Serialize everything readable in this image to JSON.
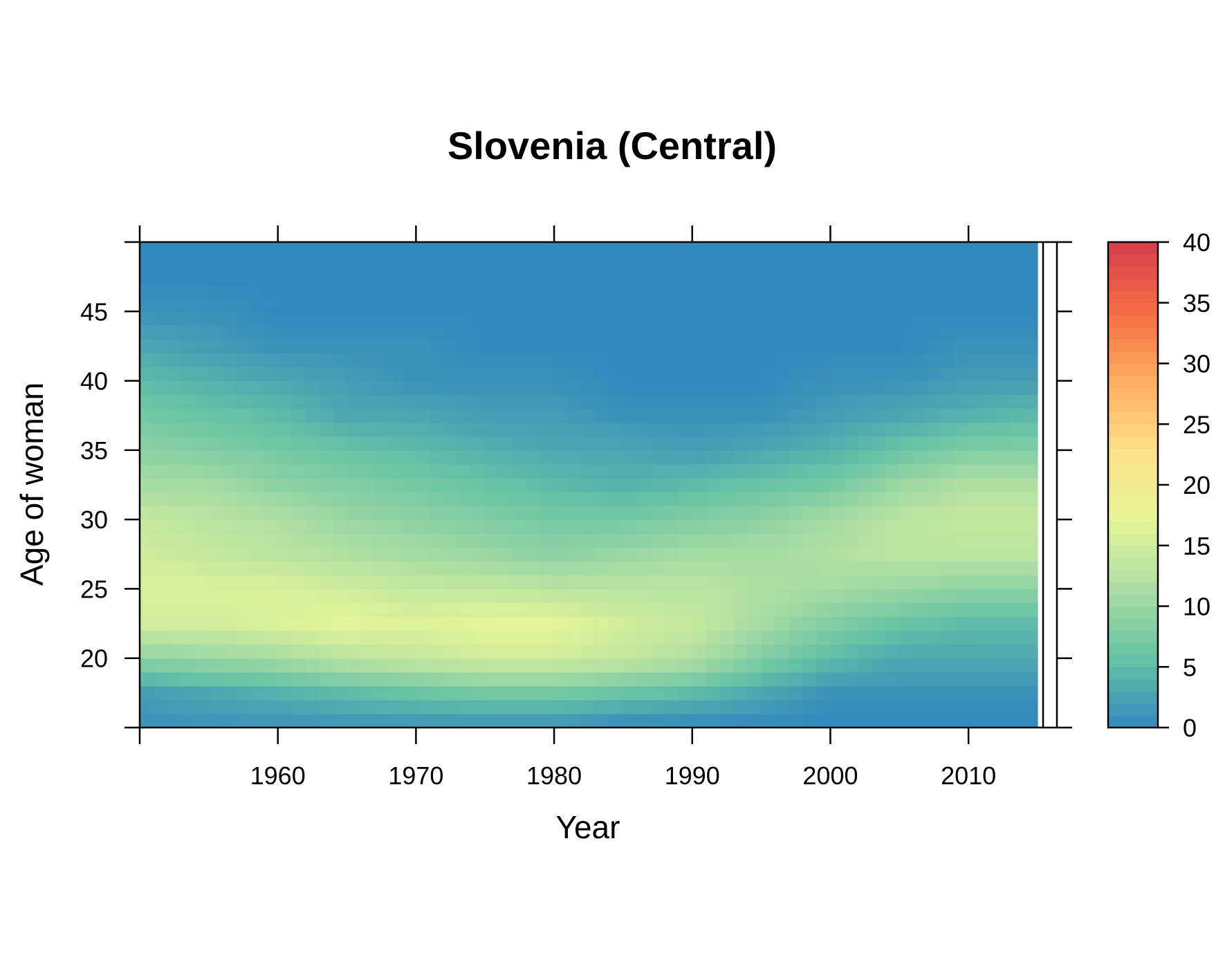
{
  "chart_data": {
    "type": "heatmap",
    "title": "Slovenia (Central)",
    "xlabel": "Year",
    "ylabel": "Age of woman",
    "x_range": [
      1950,
      2015
    ],
    "y_range": [
      15,
      50
    ],
    "x_ticks": [
      1960,
      1970,
      1980,
      1990,
      2000,
      2010
    ],
    "y_ticks": [
      20,
      25,
      30,
      35,
      40,
      45
    ],
    "colorbar": {
      "range": [
        0,
        40
      ],
      "ticks": [
        0,
        5,
        10,
        15,
        20,
        25,
        30,
        35,
        40
      ],
      "colors": [
        "#3288bd",
        "#66c2a5",
        "#abdda4",
        "#e6f598",
        "#fee08b",
        "#fdae61",
        "#f46d43",
        "#d53e4f"
      ]
    },
    "rate_grid": {
      "years": [
        1950,
        1955,
        1960,
        1965,
        1970,
        1975,
        1980,
        1985,
        1990,
        1995,
        2000,
        2005,
        2010,
        2015
      ],
      "ages": [
        15,
        17.5,
        20,
        22.5,
        25,
        27.5,
        30,
        32.5,
        35,
        37.5,
        40,
        42.5,
        45,
        47.5,
        50
      ],
      "values": [
        [
          1,
          2,
          9,
          15,
          16,
          15,
          14,
          11,
          9,
          7,
          5,
          3,
          1,
          0,
          0
        ],
        [
          1,
          3,
          10,
          15,
          16,
          14,
          13,
          11,
          8,
          6,
          4,
          2,
          1,
          0,
          0
        ],
        [
          1,
          4,
          11,
          16,
          16,
          13,
          12,
          9,
          7,
          5,
          3,
          1,
          0,
          0,
          0
        ],
        [
          1,
          5,
          13,
          17,
          15,
          12,
          10,
          8,
          6,
          3,
          2,
          1,
          0,
          0,
          0
        ],
        [
          1,
          6,
          14,
          16,
          14,
          11,
          9,
          7,
          5,
          3,
          1,
          1,
          0,
          0,
          0
        ],
        [
          1,
          7,
          15,
          17,
          14,
          10,
          8,
          6,
          4,
          2,
          1,
          0,
          0,
          0,
          0
        ],
        [
          1,
          7,
          15,
          17,
          13,
          9,
          7,
          5,
          3,
          2,
          1,
          0,
          0,
          0,
          0
        ],
        [
          0,
          6,
          14,
          15,
          13,
          10,
          7,
          4,
          3,
          1,
          0,
          0,
          0,
          0,
          0
        ],
        [
          0,
          5,
          12,
          14,
          13,
          11,
          8,
          5,
          2,
          1,
          0,
          0,
          0,
          0,
          0
        ],
        [
          0,
          3,
          8,
          11,
          12,
          11,
          9,
          6,
          3,
          1,
          0,
          0,
          0,
          0,
          0
        ],
        [
          0,
          1,
          5,
          8,
          11,
          12,
          11,
          7,
          4,
          2,
          1,
          0,
          0,
          0,
          0
        ],
        [
          0,
          1,
          3,
          6,
          10,
          13,
          13,
          10,
          6,
          3,
          1,
          0,
          0,
          0,
          0
        ],
        [
          0,
          1,
          3,
          5,
          9,
          13,
          14,
          12,
          8,
          4,
          2,
          1,
          0,
          0,
          0
        ],
        [
          0,
          1,
          3,
          5,
          9,
          13,
          14,
          12,
          8,
          5,
          2,
          1,
          0,
          0,
          0
        ]
      ]
    }
  }
}
